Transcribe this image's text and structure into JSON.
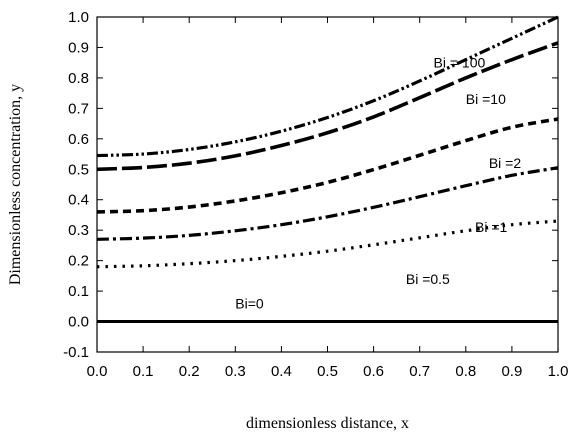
{
  "chart_data": {
    "type": "line",
    "title": "",
    "xlabel": "dimensionless distance, x",
    "ylabel": "Dimensionless concentration, y",
    "xlim": [
      0.0,
      1.0
    ],
    "ylim": [
      -0.1,
      1.0
    ],
    "xticks": [
      "0.0",
      "0.1",
      "0.2",
      "0.3",
      "0.4",
      "0.5",
      "0.6",
      "0.7",
      "0.8",
      "0.9",
      "1.0"
    ],
    "yticks": [
      "-0.1",
      "0.0",
      "0.1",
      "0.2",
      "0.3",
      "0.4",
      "0.5",
      "0.6",
      "0.7",
      "0.8",
      "0.9",
      "1.0"
    ],
    "grid": false,
    "legend": "none",
    "x": [
      0.0,
      0.1,
      0.2,
      0.3,
      0.4,
      0.5,
      0.6,
      0.7,
      0.8,
      0.9,
      1.0
    ],
    "series": [
      {
        "name": "Bi = 100",
        "dash": "dash-dot-dot",
        "values": [
          0.545,
          0.55,
          0.565,
          0.59,
          0.625,
          0.67,
          0.725,
          0.79,
          0.86,
          0.93,
          1.0
        ],
        "label_at": [
          0.73,
          0.85
        ]
      },
      {
        "name": "Bi =10",
        "dash": "long-dash",
        "values": [
          0.5,
          0.506,
          0.52,
          0.544,
          0.578,
          0.62,
          0.672,
          0.735,
          0.8,
          0.86,
          0.915
        ],
        "label_at": [
          0.8,
          0.73
        ]
      },
      {
        "name": "Bi =2",
        "dash": "short-dash",
        "values": [
          0.36,
          0.364,
          0.376,
          0.396,
          0.423,
          0.457,
          0.499,
          0.546,
          0.594,
          0.638,
          0.665
        ],
        "label_at": [
          0.85,
          0.52
        ]
      },
      {
        "name": "Bi =1",
        "dash": "dash-dot",
        "values": [
          0.27,
          0.274,
          0.283,
          0.298,
          0.318,
          0.344,
          0.375,
          0.41,
          0.446,
          0.48,
          0.505
        ],
        "label_at": [
          0.82,
          0.31
        ]
      },
      {
        "name": "Bi =0.5",
        "dash": "dotted",
        "values": [
          0.18,
          0.183,
          0.19,
          0.2,
          0.214,
          0.231,
          0.252,
          0.275,
          0.298,
          0.318,
          0.33
        ],
        "label_at": [
          0.67,
          0.14
        ]
      },
      {
        "name": "Bi=0",
        "dash": "solid",
        "values": [
          0.0,
          0.0,
          0.0,
          0.0,
          0.0,
          0.0,
          0.0,
          0.0,
          0.0,
          0.0,
          0.0
        ],
        "label_at": [
          0.3,
          0.06
        ]
      }
    ]
  }
}
